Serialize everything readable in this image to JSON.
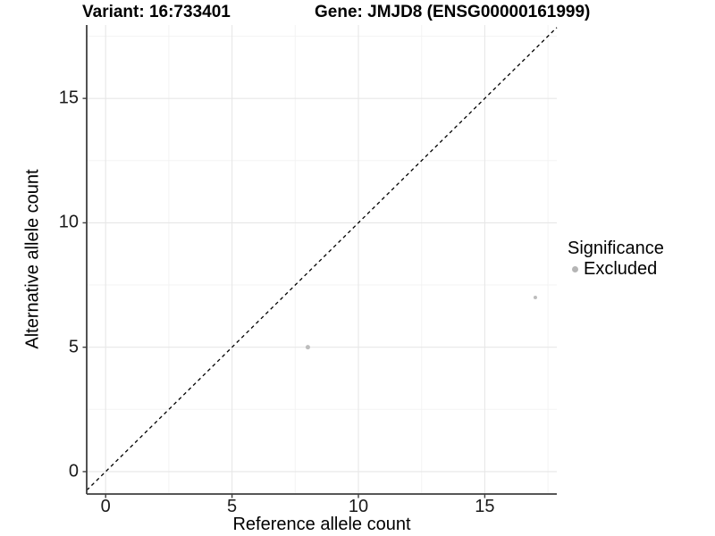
{
  "titles": {
    "variant": "Variant: 16:733401",
    "gene": "Gene: JMJD8 (ENSG00000161999)"
  },
  "axes": {
    "x": {
      "label": "Reference allele count",
      "major_ticks": [
        0,
        5,
        10,
        15
      ],
      "minor_ticks": [
        2.5,
        7.5,
        12.5,
        17.5
      ]
    },
    "y": {
      "label": "Alternative allele count",
      "major_ticks": [
        0,
        5,
        10,
        15
      ],
      "minor_ticks": [
        2.5,
        7.5,
        12.5,
        17.5
      ]
    }
  },
  "legend": {
    "title": "Significance",
    "items": [
      {
        "label": "Excluded",
        "color": "#b5b5b5",
        "marker": "circle"
      }
    ]
  },
  "chart_data": {
    "type": "scatter",
    "title": "Variant: 16:733401   |   Gene: JMJD8 (ENSG00000161999)",
    "xlabel": "Reference allele count",
    "ylabel": "Alternative allele count",
    "xlim": [
      -0.75,
      17.85
    ],
    "ylim": [
      -0.9,
      17.95
    ],
    "grid": true,
    "series": [
      {
        "name": "Excluded",
        "color": "#bdbdbd",
        "points": [
          {
            "x": 8,
            "y": 5,
            "size": 2.5
          },
          {
            "x": 17,
            "y": 7,
            "size": 2.0
          }
        ]
      }
    ],
    "reference_line": {
      "type": "identity y=x",
      "style": "dashed",
      "color": "#000000"
    }
  },
  "colors": {
    "background": "#ffffff",
    "grid_major": "#e7e7e7",
    "grid_minor": "#f3f3f3",
    "axis_line": "#3f3f3f",
    "point": "#bdbdbd",
    "dashed_line": "#000000"
  }
}
